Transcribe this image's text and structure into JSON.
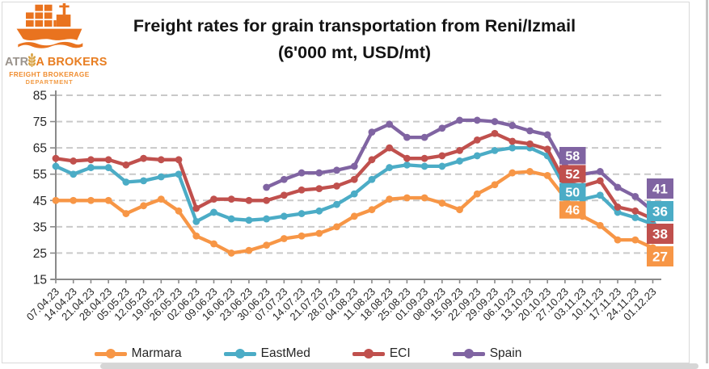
{
  "logo": {
    "brand_prefix": "ATR",
    "brand_suffix": "A BROKERS",
    "sub_line1": "FREIGHT BROKERAGE",
    "sub_line2": "DEPARTMENT",
    "ship_icon_color": "#e9731f",
    "wheat_color": "#d9a13f"
  },
  "title": {
    "line1": "Freight rates for grain transportation from Reni/Izmail",
    "line2": "(6'000 mt, USD/mt)"
  },
  "chart_data": {
    "type": "line",
    "title": "Freight rates for grain transportation from Reni/Izmail (6'000 mt, USD/mt)",
    "xlabel": "",
    "ylabel": "",
    "ylim": [
      15,
      85
    ],
    "yticks": [
      15,
      25,
      35,
      45,
      55,
      65,
      75,
      85
    ],
    "grid": "dashed-horizontal",
    "legend_position": "bottom",
    "x": [
      "07.04.23",
      "14.04.23",
      "21.04.23",
      "28.04.23",
      "05.05.23",
      "12.05.23",
      "19.05.23",
      "26.05.23",
      "02.06.23",
      "09.06.23",
      "16.06.23",
      "23.06.23",
      "30.06.23",
      "07.07.23",
      "14.07.23",
      "21.07.23",
      "28.07.23",
      "04.08.23",
      "11.08.23",
      "18.08.23",
      "25.08.23",
      "01.09.23",
      "08.09.23",
      "15.09.23",
      "22.09.23",
      "29.09.23",
      "06.10.23",
      "13.10.23",
      "20.10.23",
      "27.10.23",
      "03.11.23",
      "10.11.23",
      "17.11.23",
      "24.11.23",
      "01.12.23"
    ],
    "series": [
      {
        "name": "Marmara",
        "color": "#f79646",
        "values": [
          45,
          45,
          45,
          45,
          40,
          43,
          45.5,
          41,
          31.5,
          28.5,
          25,
          26,
          28,
          30.5,
          31.5,
          32.5,
          35,
          39,
          41.5,
          45.5,
          46,
          46,
          44,
          41.5,
          47.5,
          51,
          55.5,
          56,
          54.5,
          46,
          39,
          35.5,
          30,
          30,
          27
        ]
      },
      {
        "name": "EastMed",
        "color": "#4bacc6",
        "values": [
          58,
          55,
          57.5,
          57.5,
          52,
          52.5,
          54,
          55,
          37,
          40.5,
          38,
          37.5,
          38,
          39,
          40,
          41,
          43.5,
          47.5,
          53,
          57.5,
          58.5,
          58,
          58,
          60,
          62,
          64,
          65,
          65,
          62,
          50,
          45.5,
          47,
          40.5,
          38.5,
          36
        ]
      },
      {
        "name": "ECI",
        "color": "#c0504d",
        "values": [
          61,
          60,
          60.5,
          60.5,
          58.5,
          61,
          60.5,
          60.5,
          42,
          45.5,
          45.5,
          45,
          45,
          47,
          49,
          49.5,
          50.5,
          53,
          60.5,
          65,
          61,
          61,
          62,
          64,
          68,
          70.5,
          67.5,
          66.5,
          64.5,
          52,
          50.5,
          52.5,
          42.5,
          41,
          38
        ]
      },
      {
        "name": "Spain",
        "color": "#8064a2",
        "values": [
          null,
          null,
          null,
          null,
          null,
          null,
          null,
          null,
          null,
          null,
          null,
          null,
          50,
          53,
          55.5,
          55.5,
          56.5,
          58,
          71,
          74,
          69,
          69,
          72.5,
          75.5,
          75.5,
          75,
          73.5,
          71.5,
          70,
          58,
          55,
          56,
          50,
          46.5,
          41
        ]
      }
    ],
    "annotations": [
      {
        "at": "27.10.23",
        "items": [
          {
            "series": "Spain",
            "value": 58
          },
          {
            "series": "ECI",
            "value": 52
          },
          {
            "series": "EastMed",
            "value": 50
          },
          {
            "series": "Marmara",
            "value": 46
          }
        ]
      },
      {
        "at": "01.12.23",
        "items": [
          {
            "series": "Spain",
            "value": 41
          },
          {
            "series": "EastMed",
            "value": 36
          },
          {
            "series": "ECI",
            "value": 38
          },
          {
            "series": "Marmara",
            "value": 27
          }
        ]
      }
    ],
    "axis_color": "#8a8a8a",
    "gridline_color": "#c9c9c9",
    "tick_label_color": "#262626"
  }
}
